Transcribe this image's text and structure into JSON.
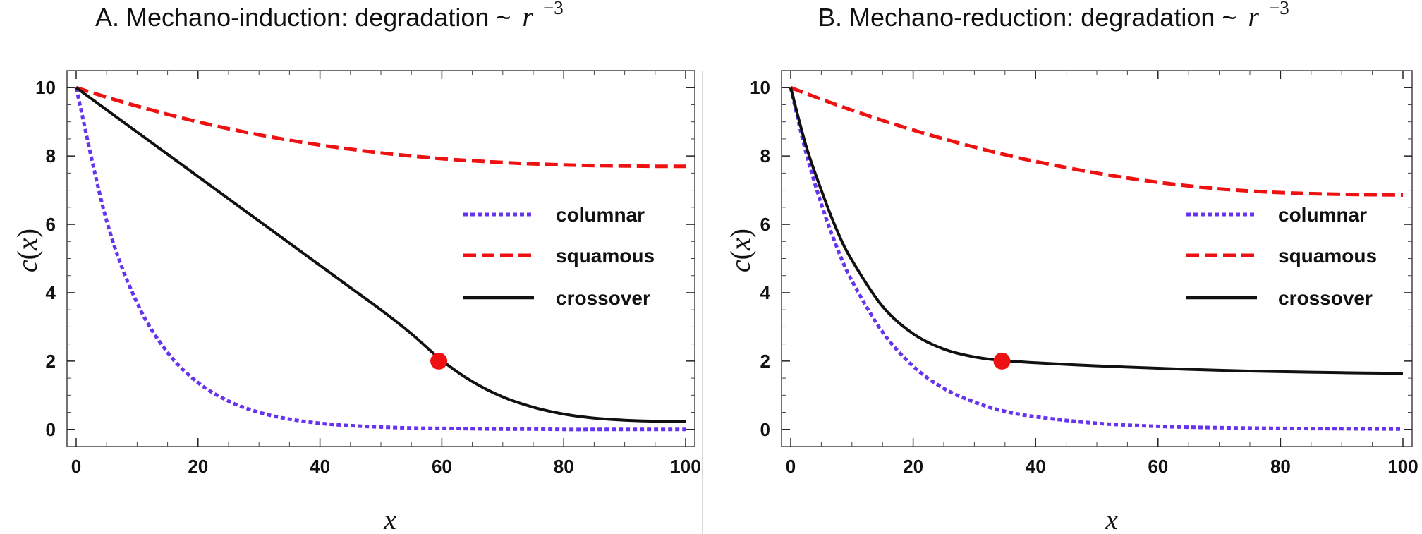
{
  "chart_data": [
    {
      "type": "line",
      "title": {
        "prefix": "A.  Mechano-induction:  degradation ~ ",
        "math_base": "r",
        "math_exp": "−3"
      },
      "xlabel": "x",
      "ylabel": {
        "func": "c",
        "open": "(",
        "var": "x",
        "close": ")"
      },
      "xlim": [
        0,
        100
      ],
      "ylim": [
        -0.5,
        10.5
      ],
      "x_ticks": [
        0,
        20,
        40,
        60,
        80,
        100
      ],
      "y_ticks": [
        0,
        2,
        4,
        6,
        8,
        10
      ],
      "grid": false,
      "legend_placement": "center-right",
      "x": [
        0,
        5,
        10,
        15,
        20,
        25,
        30,
        35,
        40,
        45,
        50,
        55,
        60,
        65,
        70,
        75,
        80,
        85,
        90,
        95,
        100
      ],
      "series": [
        {
          "name": "columnar",
          "style": "dotted",
          "color": "#6633ee",
          "values": [
            10.0,
            6.1,
            3.7,
            2.25,
            1.37,
            0.83,
            0.5,
            0.3,
            0.18,
            0.11,
            0.07,
            0.04,
            0.03,
            0.02,
            0.01,
            0.01,
            0.0,
            0.0,
            0.0,
            0.0,
            0.0
          ]
        },
        {
          "name": "squamous",
          "style": "dashed",
          "color": "#ee1111",
          "values": [
            10.0,
            9.72,
            9.46,
            9.22,
            9.0,
            8.8,
            8.62,
            8.46,
            8.32,
            8.2,
            8.09,
            8.0,
            7.92,
            7.86,
            7.81,
            7.77,
            7.74,
            7.72,
            7.71,
            7.7,
            7.7
          ]
        },
        {
          "name": "crossover",
          "style": "solid",
          "color": "#111111",
          "values": [
            10.0,
            9.35,
            8.7,
            8.05,
            7.4,
            6.75,
            6.1,
            5.45,
            4.8,
            4.15,
            3.5,
            2.8,
            2.02,
            1.4,
            0.95,
            0.65,
            0.45,
            0.33,
            0.27,
            0.24,
            0.23
          ]
        }
      ],
      "marker": {
        "x": 59.5,
        "y": 2.0,
        "color": "#ee1111"
      }
    },
    {
      "type": "line",
      "title": {
        "prefix": "B.  Mechano-reduction:  degradation ~ ",
        "math_base": "r",
        "math_exp": "−3"
      },
      "xlabel": "x",
      "ylabel": {
        "func": "c",
        "open": "(",
        "var": "x",
        "close": ")"
      },
      "xlim": [
        0,
        100
      ],
      "ylim": [
        -0.5,
        10.5
      ],
      "x_ticks": [
        0,
        20,
        40,
        60,
        80,
        100
      ],
      "y_ticks": [
        0,
        2,
        4,
        6,
        8,
        10
      ],
      "grid": false,
      "legend_placement": "center-right",
      "x": [
        0,
        2.5,
        5,
        7.5,
        10,
        15,
        20,
        25,
        30,
        34.5,
        40,
        50,
        60,
        70,
        80,
        90,
        100
      ],
      "series": [
        {
          "name": "columnar",
          "style": "dotted",
          "color": "#6633ee",
          "values": [
            10.0,
            8.1,
            6.6,
            5.35,
            4.35,
            2.85,
            1.85,
            1.2,
            0.8,
            0.55,
            0.37,
            0.18,
            0.09,
            0.05,
            0.03,
            0.02,
            0.01
          ]
        },
        {
          "name": "squamous",
          "style": "dashed",
          "color": "#ee1111",
          "values": [
            10.0,
            9.83,
            9.66,
            9.5,
            9.34,
            9.04,
            8.76,
            8.5,
            8.26,
            8.06,
            7.84,
            7.5,
            7.23,
            7.04,
            6.93,
            6.88,
            6.86
          ]
        },
        {
          "name": "crossover",
          "style": "solid",
          "color": "#111111",
          "values": [
            10.0,
            8.3,
            7.0,
            5.85,
            4.95,
            3.6,
            2.8,
            2.35,
            2.12,
            2.02,
            1.95,
            1.86,
            1.79,
            1.73,
            1.69,
            1.66,
            1.64
          ]
        }
      ],
      "marker": {
        "x": 34.5,
        "y": 2.0,
        "color": "#ee1111"
      }
    }
  ]
}
